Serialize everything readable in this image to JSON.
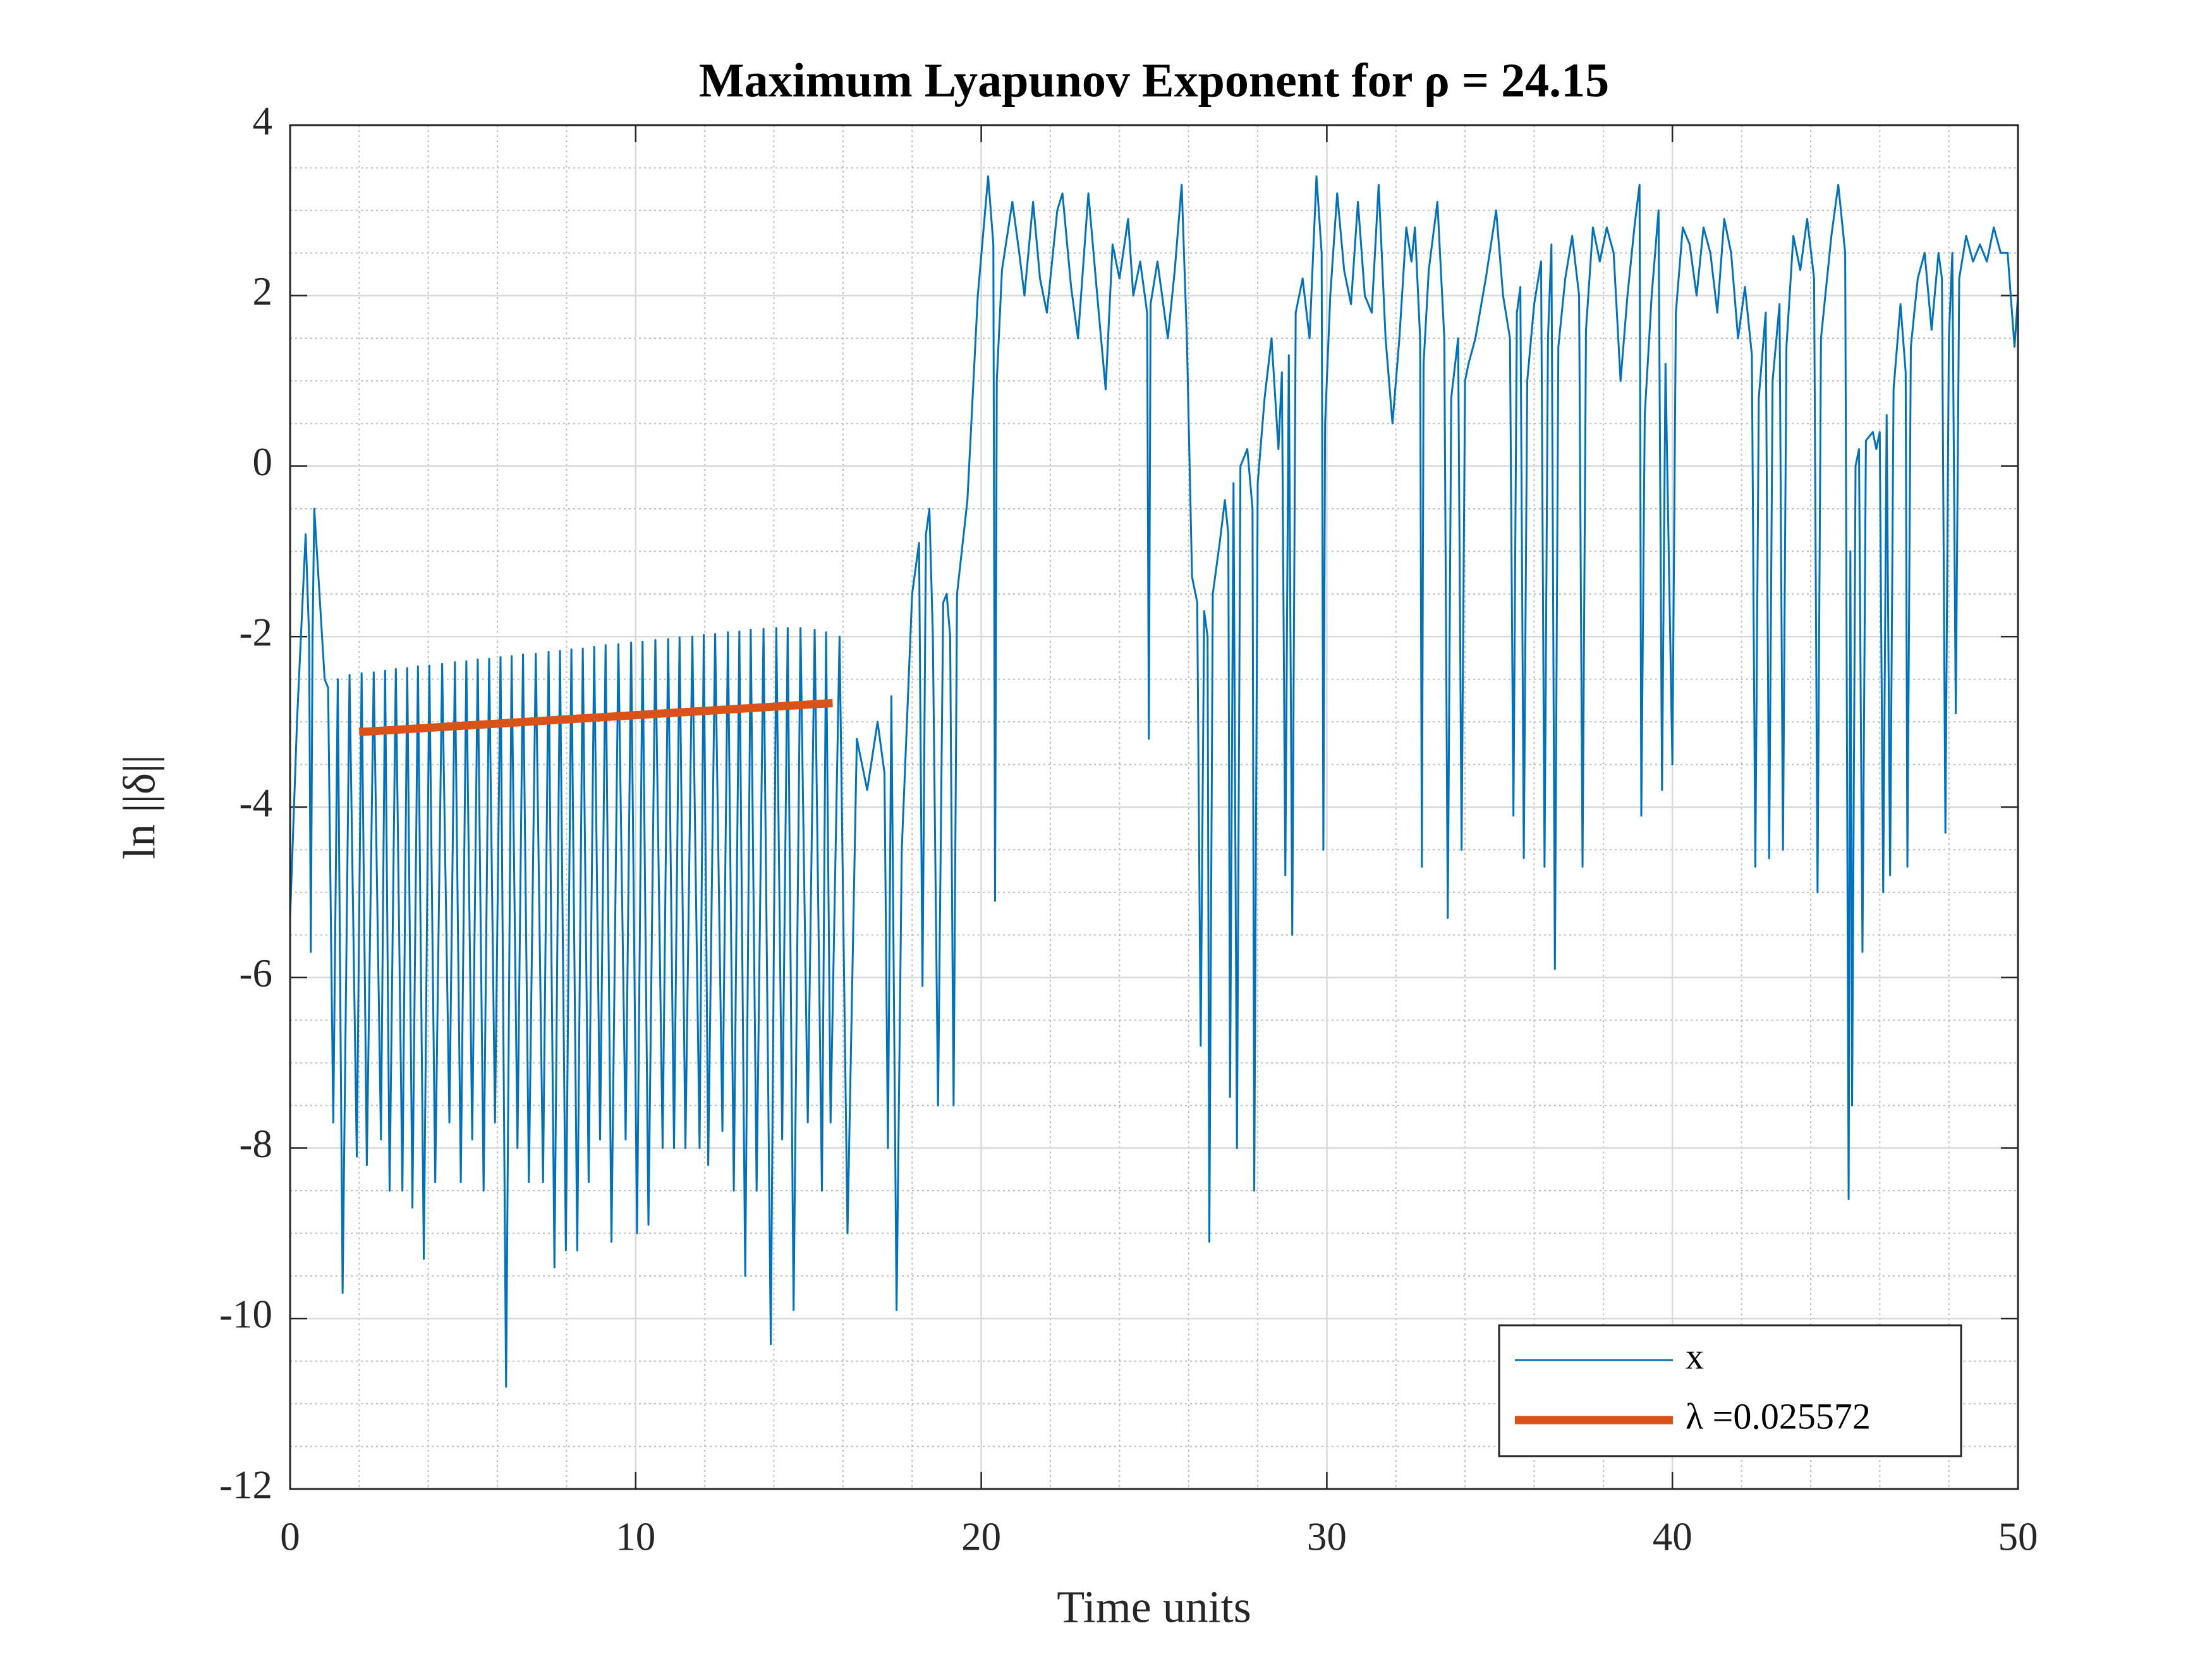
{
  "chart_data": {
    "type": "line",
    "title": "Maximum Lyapunov Exponent for ρ = 24.15",
    "xlabel": "Time units",
    "ylabel": "ln ||δ||",
    "xlim": [
      0,
      50
    ],
    "ylim": [
      -12,
      4
    ],
    "xticks": [
      0,
      10,
      20,
      30,
      40,
      50
    ],
    "yticks": [
      -12,
      -10,
      -8,
      -6,
      -4,
      -2,
      0,
      2,
      4
    ],
    "xminorticks": [
      2,
      4,
      6,
      8,
      12,
      14,
      16,
      18,
      22,
      24,
      26,
      28,
      32,
      34,
      36,
      38,
      42,
      44,
      46,
      48
    ],
    "yminorticks": [
      -11.5,
      -11,
      -10.5,
      -9.5,
      -9,
      -8.5,
      -7.5,
      -7,
      -6.5,
      -5.5,
      -5,
      -4.5,
      -3.5,
      -3,
      -2.5,
      -1.5,
      -1,
      -0.5,
      0.5,
      1,
      1.5,
      2.5,
      3,
      3.5
    ],
    "grid": true,
    "minor_grid": true,
    "legend": "lower right",
    "series": [
      {
        "name": "x",
        "color": "#0072bd",
        "x": [
          0,
          0.2,
          0.45,
          0.55,
          0.6,
          0.65,
          0.7,
          0.85,
          1.0,
          1.1,
          1.25,
          1.38,
          1.52,
          1.72,
          1.93,
          2.07,
          2.22,
          2.42,
          2.63,
          2.75,
          2.88,
          3.06,
          3.25,
          3.39,
          3.54,
          3.7,
          3.87,
          4.03,
          4.2,
          4.4,
          4.61,
          4.77,
          4.94,
          5.1,
          5.27,
          5.43,
          5.6,
          5.76,
          5.93,
          6.09,
          6.25,
          6.41,
          6.58,
          6.74,
          6.91,
          7.11,
          7.32,
          7.48,
          7.65,
          7.81,
          7.98,
          8.14,
          8.31,
          8.47,
          8.64,
          8.8,
          8.97,
          9.13,
          9.3,
          9.5,
          9.71,
          9.87,
          10.04,
          10.2,
          10.37,
          10.57,
          10.78,
          10.94,
          11.11,
          11.27,
          11.44,
          11.64,
          11.85,
          11.97,
          12.1,
          12.3,
          12.51,
          12.67,
          12.84,
          13.0,
          13.17,
          13.33,
          13.5,
          13.7,
          13.91,
          14.07,
          14.24,
          14.4,
          14.57,
          14.77,
          14.98,
          15.18,
          15.39,
          15.51,
          15.64,
          15.9,
          16.13,
          16.4,
          16.7,
          17.0,
          17.2,
          17.3,
          17.4,
          17.55,
          17.7,
          18.0,
          18.2,
          18.3,
          18.4,
          18.5,
          18.6,
          18.75,
          18.9,
          19.0,
          19.1,
          19.2,
          19.3,
          19.6,
          19.9,
          20.2,
          20.35,
          20.4,
          20.45,
          20.6,
          20.9,
          21.1,
          21.25,
          21.5,
          21.7,
          21.9,
          22.2,
          22.35,
          22.6,
          22.8,
          23.1,
          23.4,
          23.6,
          23.8,
          24.0,
          24.25,
          24.4,
          24.6,
          24.8,
          24.85,
          24.9,
          25.1,
          25.4,
          25.6,
          25.8,
          25.95,
          26.1,
          26.25,
          26.35,
          26.45,
          26.55,
          26.6,
          26.7,
          26.9,
          27.05,
          27.15,
          27.2,
          27.3,
          27.4,
          27.5,
          27.7,
          27.85,
          27.9,
          28.0,
          28.2,
          28.4,
          28.6,
          28.7,
          28.8,
          28.9,
          29.0,
          29.1,
          29.3,
          29.5,
          29.7,
          29.85,
          29.9,
          29.95,
          30.1,
          30.3,
          30.5,
          30.7,
          30.9,
          31.1,
          31.3,
          31.5,
          31.7,
          31.9,
          32.1,
          32.3,
          32.45,
          32.55,
          32.7,
          32.75,
          32.8,
          32.95,
          33.2,
          33.4,
          33.5,
          33.6,
          33.8,
          33.9,
          34.0,
          34.1,
          34.3,
          34.6,
          34.9,
          35.1,
          35.3,
          35.4,
          35.5,
          35.6,
          35.7,
          35.8,
          36.0,
          36.2,
          36.3,
          36.4,
          36.5,
          36.6,
          36.7,
          36.9,
          37.1,
          37.3,
          37.4,
          37.5,
          37.7,
          37.9,
          38.1,
          38.3,
          38.5,
          38.7,
          38.9,
          39.05,
          39.1,
          39.2,
          39.4,
          39.6,
          39.7,
          39.8,
          40.0,
          40.1,
          40.3,
          40.5,
          40.7,
          40.9,
          41.1,
          41.3,
          41.5,
          41.7,
          41.9,
          42.1,
          42.3,
          42.4,
          42.5,
          42.7,
          42.8,
          42.9,
          43.1,
          43.2,
          43.3,
          43.5,
          43.7,
          43.9,
          44.1,
          44.2,
          44.3,
          44.6,
          44.8,
          45.0,
          45.1,
          45.15,
          45.2,
          45.3,
          45.4,
          45.5,
          45.6,
          45.8,
          45.9,
          46.0,
          46.1,
          46.2,
          46.3,
          46.4,
          46.6,
          46.75,
          46.8,
          46.9,
          47.1,
          47.3,
          47.5,
          47.7,
          47.8,
          47.9,
          48.0,
          48.1,
          48.2,
          48.3,
          48.5,
          48.7,
          48.9,
          49.1,
          49.3,
          49.5,
          49.7,
          49.9,
          50
        ],
        "values": [
          -5.3,
          -3.0,
          -0.8,
          -2.0,
          -5.7,
          -2.0,
          -0.5,
          -1.5,
          -2.5,
          -2.6,
          -7.7,
          -2.5,
          -9.7,
          -2.45,
          -8.1,
          -2.43,
          -8.2,
          -2.42,
          -7.9,
          -2.4,
          -8.5,
          -2.38,
          -8.5,
          -2.37,
          -8.7,
          -2.35,
          -9.3,
          -2.34,
          -8.4,
          -2.32,
          -7.7,
          -2.3,
          -8.4,
          -2.29,
          -7.9,
          -2.27,
          -8.5,
          -2.26,
          -7.7,
          -2.24,
          -10.8,
          -2.23,
          -8.0,
          -2.21,
          -8.4,
          -2.2,
          -8.4,
          -2.18,
          -9.4,
          -2.17,
          -9.2,
          -2.15,
          -9.2,
          -2.14,
          -8.4,
          -2.12,
          -7.9,
          -2.1,
          -9.1,
          -2.09,
          -7.9,
          -2.07,
          -9.0,
          -2.06,
          -8.9,
          -2.04,
          -8.0,
          -2.03,
          -8.0,
          -2.01,
          -8.0,
          -2.0,
          -8.0,
          -1.98,
          -8.2,
          -1.97,
          -7.8,
          -1.95,
          -8.5,
          -1.94,
          -9.5,
          -1.92,
          -8.5,
          -1.91,
          -10.3,
          -1.9,
          -7.9,
          -1.9,
          -9.9,
          -1.9,
          -7.7,
          -1.92,
          -8.5,
          -1.95,
          -7.7,
          -2.0,
          -9.0,
          -3.2,
          -3.8,
          -3.0,
          -3.6,
          -8.0,
          -2.7,
          -9.9,
          -4.5,
          -1.5,
          -0.9,
          -6.1,
          -0.8,
          -0.5,
          -2.0,
          -7.5,
          -1.6,
          -1.5,
          -2.0,
          -7.5,
          -1.5,
          -0.4,
          2.0,
          3.4,
          2.6,
          -5.1,
          1.0,
          2.3,
          3.1,
          2.5,
          2.0,
          3.1,
          2.2,
          1.8,
          3.0,
          3.2,
          2.1,
          1.5,
          3.2,
          1.8,
          0.9,
          2.6,
          2.2,
          2.9,
          2.0,
          2.4,
          1.8,
          -3.2,
          1.9,
          2.4,
          1.5,
          2.3,
          3.3,
          1.5,
          -1.3,
          -1.6,
          -6.8,
          -1.7,
          -2.0,
          -9.1,
          -1.5,
          -0.9,
          -0.4,
          -0.8,
          -7.4,
          -0.2,
          -8.0,
          0.0,
          0.2,
          -0.5,
          -8.5,
          -0.2,
          0.8,
          1.5,
          0.2,
          1.1,
          -4.8,
          1.3,
          -5.5,
          1.8,
          2.2,
          1.5,
          3.4,
          2.5,
          -4.5,
          0.5,
          2.0,
          3.2,
          2.3,
          1.9,
          3.1,
          2.0,
          1.8,
          3.3,
          1.5,
          0.5,
          1.5,
          2.8,
          2.4,
          2.8,
          1.5,
          -4.7,
          1.2,
          2.3,
          3.1,
          1.5,
          -5.3,
          0.8,
          1.5,
          -4.5,
          1.0,
          1.2,
          1.5,
          2.2,
          3.0,
          2.0,
          1.5,
          -4.1,
          1.8,
          2.1,
          -4.6,
          1.0,
          1.9,
          2.4,
          -4.7,
          1.5,
          2.6,
          -5.9,
          1.4,
          2.2,
          2.7,
          2.0,
          -4.7,
          1.6,
          2.8,
          2.4,
          2.8,
          2.5,
          1.0,
          2.0,
          2.8,
          3.3,
          -4.1,
          0.6,
          2.0,
          3.0,
          -3.8,
          1.2,
          -3.5,
          1.8,
          2.8,
          2.6,
          2.0,
          2.8,
          2.5,
          1.8,
          2.9,
          2.5,
          1.5,
          2.1,
          1.3,
          -4.7,
          0.8,
          1.8,
          -4.6,
          1.0,
          1.9,
          -4.5,
          1.4,
          2.7,
          2.3,
          2.9,
          2.2,
          -5.0,
          1.5,
          2.7,
          3.3,
          2.5,
          -8.6,
          -1.0,
          -7.5,
          0.0,
          0.2,
          -5.7,
          0.3,
          0.4,
          0.2,
          0.4,
          -5.0,
          0.6,
          -4.8,
          0.9,
          1.9,
          1.1,
          -4.7,
          1.4,
          2.2,
          2.5,
          1.6,
          2.5,
          2.2,
          -4.3,
          1.5,
          2.5,
          -2.9,
          2.2,
          2.7,
          2.4,
          2.6,
          2.4,
          2.8,
          2.5,
          2.5,
          1.4,
          2.0
        ]
      },
      {
        "name": "λ =0.025572",
        "color": "#d95319",
        "x": [
          2,
          15.7
        ],
        "values": [
          -3.12,
          -2.78
        ]
      }
    ]
  }
}
